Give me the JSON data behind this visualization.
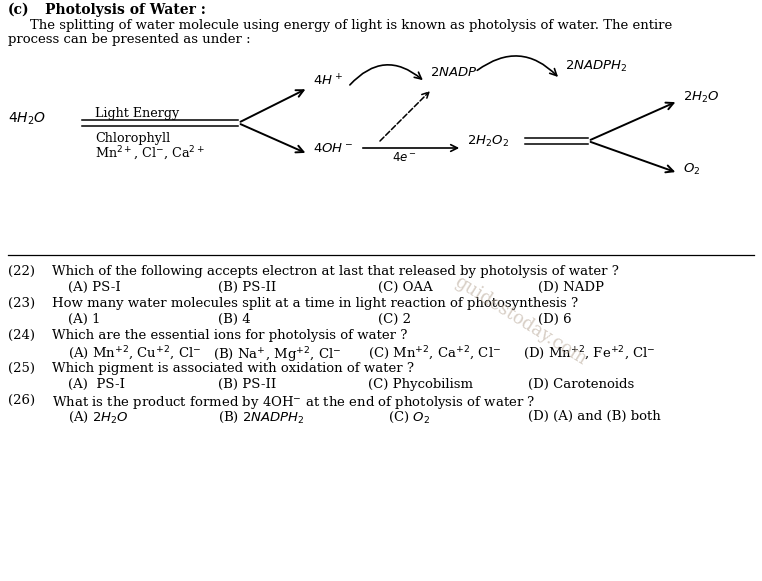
{
  "bg_color": "#ffffff",
  "title_c": "(c)",
  "title_text": "Photolysis of Water :",
  "para1": "The splitting of water molecule using energy of light is known as photolysis of water. The entire",
  "para2": "process can be presented as under :",
  "watermark": "guidestoday.com"
}
